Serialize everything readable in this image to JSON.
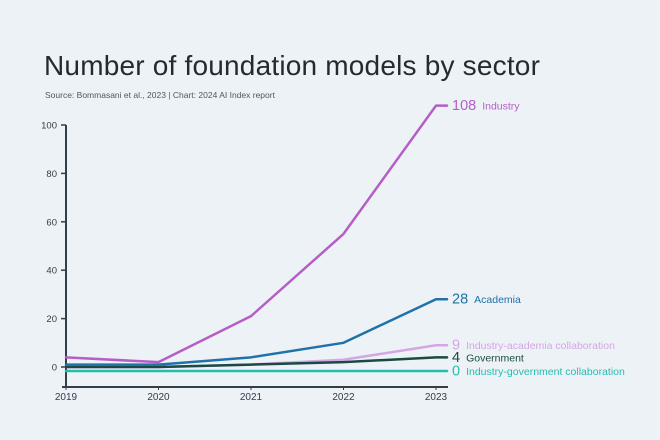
{
  "page": {
    "background_color": "#edf2f7"
  },
  "header": {
    "title": "Number of foundation models by sector",
    "subtitle": "Source: Bommasani et al., 2023 | Chart: 2024 AI Index report"
  },
  "chart_data": {
    "type": "line",
    "title": "Number of foundation models by sector",
    "source_note": "Source: Bommasani et al., 2023 | Chart: 2024 AI Index report",
    "x": [
      2019,
      2020,
      2021,
      2022,
      2023
    ],
    "xticks": [
      "2019",
      "2020",
      "2021",
      "2022",
      "2023"
    ],
    "yticks": [
      0,
      20,
      40,
      60,
      80,
      100
    ],
    "ylim": [
      0,
      100
    ],
    "xlabel": "",
    "ylabel": "",
    "grid": false,
    "legend_position": "end-of-line-labels",
    "series": [
      {
        "name": "Industry",
        "color": "#b55ec6",
        "values": [
          4,
          2,
          21,
          55,
          108
        ],
        "end_value_label": "108"
      },
      {
        "name": "Academia",
        "color": "#2072a8",
        "values": [
          1,
          1,
          4,
          10,
          28
        ],
        "end_value_label": "28"
      },
      {
        "name": "Industry-academia collaboration",
        "color": "#d4a6e4",
        "values": [
          0,
          0,
          1,
          3,
          9
        ],
        "end_value_label": "9"
      },
      {
        "name": "Government",
        "color": "#1b4a42",
        "values": [
          0,
          0,
          1,
          2,
          4
        ],
        "end_value_label": "4"
      },
      {
        "name": "Industry-government collaboration",
        "color": "#23bdb0",
        "values": [
          0,
          0,
          0,
          0,
          0
        ],
        "end_value_label": "0"
      }
    ]
  },
  "axes": {
    "axis_color": "#323e48",
    "tick_label_color": "#333d46"
  }
}
